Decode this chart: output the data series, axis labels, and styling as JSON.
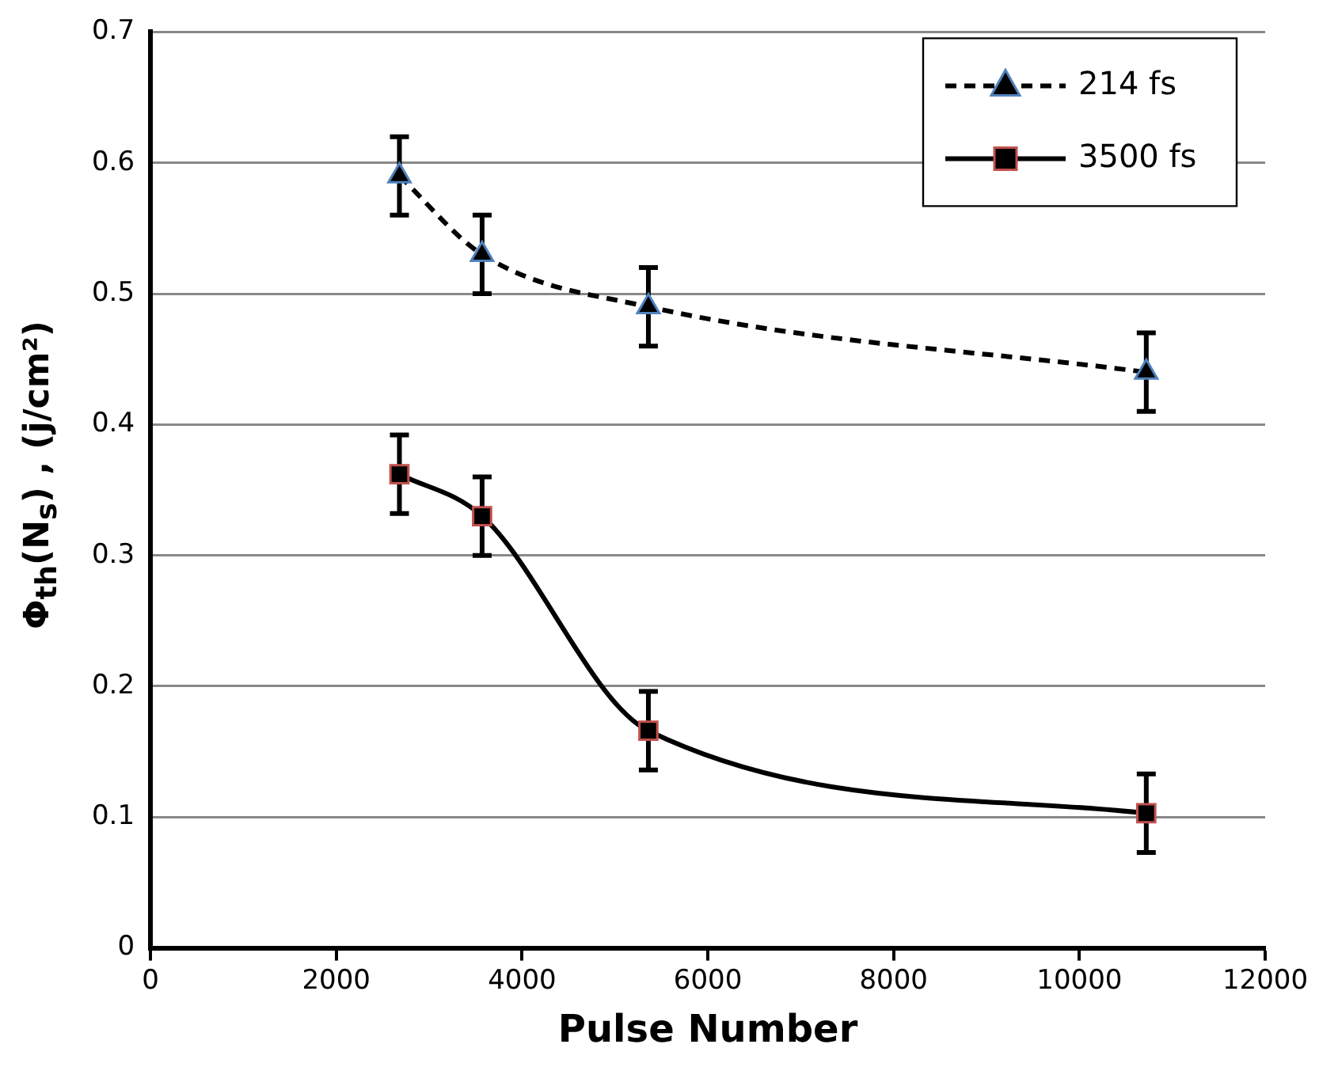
{
  "chart_data": {
    "type": "line",
    "xlabel": "Pulse Number",
    "ylabel": "Φ$_{th}$(N$_{s}$) , (j/cm²)",
    "x": [
      2680,
      3570,
      5360,
      10720
    ],
    "series": [
      {
        "name": "214 fs",
        "color": "#000000",
        "values": [
          0.59,
          0.53,
          0.49,
          0.44
        ],
        "errors": [
          0.03,
          0.03,
          0.03,
          0.03
        ],
        "marker": "triangle",
        "line_style": "dashed"
      },
      {
        "name": "3500 fs",
        "color": "#000000",
        "values": [
          0.362,
          0.33,
          0.166,
          0.103
        ],
        "errors": [
          0.03,
          0.03,
          0.03,
          0.03
        ],
        "marker": "square",
        "line_style": "solid"
      }
    ],
    "xlim": [
      0,
      12000
    ],
    "xticks": [
      0,
      2000,
      4000,
      6000,
      8000,
      10000,
      12000
    ],
    "ylim": [
      0,
      0.7
    ],
    "yticks": [
      0,
      0.1,
      0.2,
      0.3,
      0.4,
      0.5,
      0.6,
      0.7
    ],
    "grid": "y",
    "legend": "top right"
  }
}
